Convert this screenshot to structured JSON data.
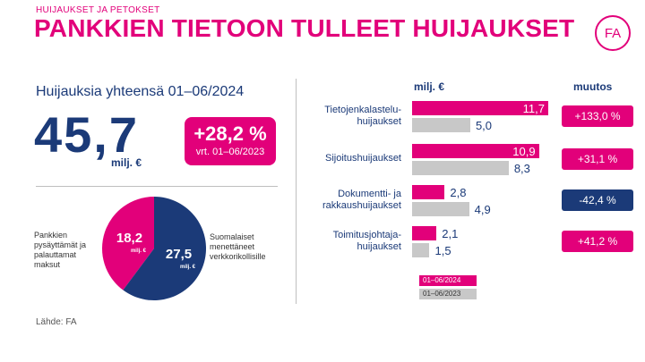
{
  "header": {
    "kicker": "HUIJAUKSET JA PETOKSET",
    "title": "PANKKIEN TIETOON TULLEET HUIJAUKSET",
    "logo_text": "FA"
  },
  "summary": {
    "label": "Huijauksia yhteensä 01–06/2024",
    "total": "45,7",
    "unit": "milj. €",
    "change": "+28,2 %",
    "change_comparison": "vrt. 01–06/2023"
  },
  "source": "Lähde: FA",
  "colors": {
    "accent": "#e2007a",
    "navy": "#1b3a78",
    "grey": "#c8c8c8"
  },
  "chart_data": [
    {
      "type": "pie",
      "slices": [
        {
          "label": "Pankkien pysäyttämät ja palauttamat maksut",
          "value": 18.2,
          "value_label": "18,2",
          "unit": "milj. €",
          "color": "#e2007a"
        },
        {
          "label": "Suomalaiset menettäneet verkkorikollisille",
          "value": 27.5,
          "value_label": "27,5",
          "unit": "milj. €",
          "color": "#1b3a78"
        }
      ]
    },
    {
      "type": "bar",
      "orientation": "horizontal",
      "value_header": "milj. €",
      "change_header": "muutos",
      "categories": [
        {
          "line1": "Tietojenkalastelu-",
          "line2": "huijaukset"
        },
        {
          "line1": "Sijoitushuijaukset",
          "line2": ""
        },
        {
          "line1": "Dokumentti- ja",
          "line2": "rakkaushuijaukset"
        },
        {
          "line1": "Toimitusjohtaja-",
          "line2": "huijaukset"
        }
      ],
      "series": [
        {
          "name": "01–06/2024",
          "values": [
            11.7,
            10.9,
            2.8,
            2.1
          ],
          "labels": [
            "11,7",
            "10,9",
            "2,8",
            "2,1"
          ],
          "color": "#e2007a"
        },
        {
          "name": "01–06/2023",
          "values": [
            5.0,
            8.3,
            4.9,
            1.5
          ],
          "labels": [
            "5,0",
            "8,3",
            "4,9",
            "1,5"
          ],
          "color": "#c8c8c8"
        }
      ],
      "changes": [
        {
          "label": "+133,0 %",
          "direction": "up"
        },
        {
          "label": "+31,1 %",
          "direction": "up"
        },
        {
          "label": "-42,4 %",
          "direction": "down"
        },
        {
          "label": "+41,2 %",
          "direction": "up"
        }
      ],
      "xlim": [
        0,
        11.7
      ]
    }
  ]
}
